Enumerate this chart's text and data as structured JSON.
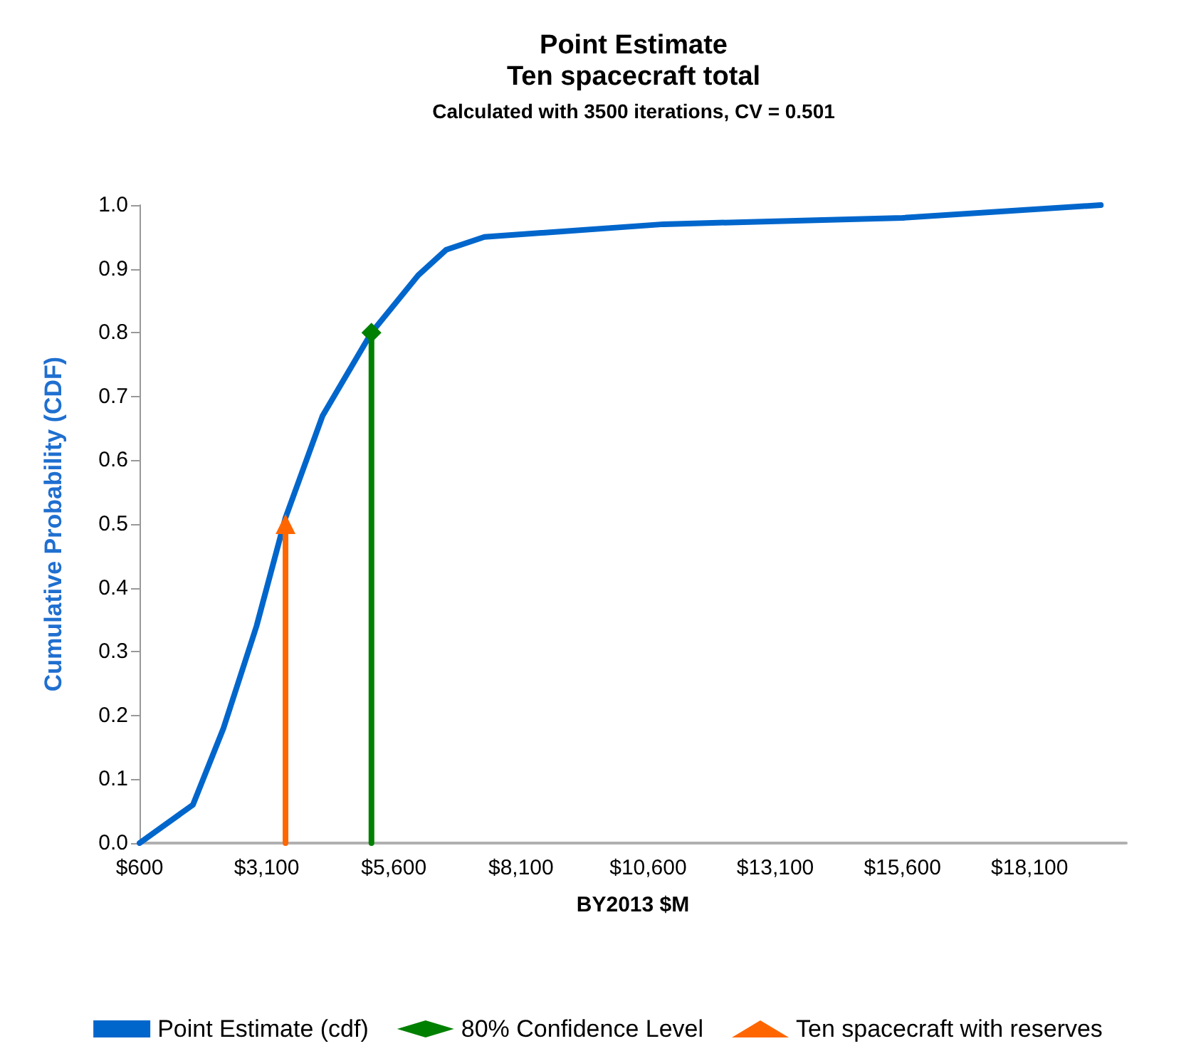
{
  "chart_data": {
    "type": "line",
    "title": "Point Estimate\nTen spacecraft total",
    "subtitle": "Calculated with 3500 iterations, CV = 0.501",
    "xlabel": "BY2013 $M",
    "ylabel": "Cumulative Probability (CDF)",
    "xlim": [
      600,
      20000
    ],
    "xticks": [
      {
        "value": 600,
        "label": "$600"
      },
      {
        "value": 3100,
        "label": "$3,100"
      },
      {
        "value": 5600,
        "label": "$5,600"
      },
      {
        "value": 8100,
        "label": "$8,100"
      },
      {
        "value": 10600,
        "label": "$10,600"
      },
      {
        "value": 13100,
        "label": "$13,100"
      },
      {
        "value": 15600,
        "label": "$15,600"
      },
      {
        "value": 18100,
        "label": "$18,100"
      }
    ],
    "ylim": [
      0,
      1
    ],
    "yticks": [
      {
        "value": 0,
        "label": "0.0"
      },
      {
        "value": 0.1,
        "label": "0.1"
      },
      {
        "value": 0.2,
        "label": "0.2"
      },
      {
        "value": 0.3,
        "label": "0.3"
      },
      {
        "value": 0.4,
        "label": "0.4"
      },
      {
        "value": 0.5,
        "label": "0.5"
      },
      {
        "value": 0.6,
        "label": "0.6"
      },
      {
        "value": 0.7,
        "label": "0.7"
      },
      {
        "value": 0.8,
        "label": "0.8"
      },
      {
        "value": 0.9,
        "label": "0.9"
      },
      {
        "value": 1.0,
        "label": "1.0"
      }
    ],
    "grid": false,
    "legend": "bottom",
    "line_style": "solid",
    "series": [
      {
        "name": "Point Estimate (cdf)",
        "color": "#0066cc",
        "marker": "none",
        "x": [
          600,
          1650,
          2250,
          2900,
          3470,
          4200,
          5160,
          6080,
          6630,
          7380,
          10900,
          15600,
          19500
        ],
        "values": [
          0,
          0.06,
          0.18,
          0.34,
          0.51,
          0.67,
          0.8,
          0.89,
          0.93,
          0.95,
          0.97,
          0.98,
          1.0
        ]
      },
      {
        "name": "80% Confidence Level",
        "color": "#008000",
        "marker": "diamond",
        "x": [
          5160,
          5160
        ],
        "values": [
          0,
          0.8
        ]
      },
      {
        "name": "Ten spacecraft with reserves",
        "color": "#ff6600",
        "marker": "triangle",
        "x": [
          3470,
          3470
        ],
        "values": [
          0,
          0.5
        ]
      }
    ]
  }
}
